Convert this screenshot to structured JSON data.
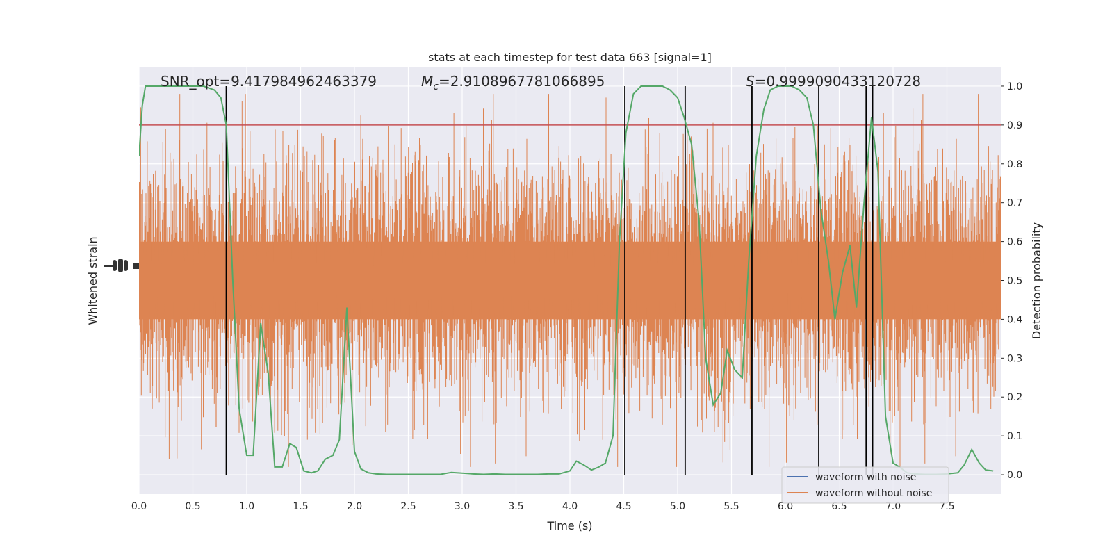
{
  "chart_data": {
    "type": "line",
    "title": "stats at each timestep for test data 663 [signal=1]",
    "xlabel": "Time (s)",
    "ylabel_left": "Whitened strain",
    "ylabel_right": "Detection probability",
    "xlim": [
      0.0,
      8.0
    ],
    "ylim_right": [
      -0.05,
      1.05
    ],
    "xticks": [
      "0.0",
      "0.5",
      "1.0",
      "1.5",
      "2.0",
      "2.5",
      "3.0",
      "3.5",
      "4.0",
      "4.5",
      "5.0",
      "5.5",
      "6.0",
      "6.5",
      "7.0",
      "7.5"
    ],
    "yticks_right": [
      "0.0",
      "0.1",
      "0.2",
      "0.3",
      "0.4",
      "0.5",
      "0.6",
      "0.7",
      "0.8",
      "0.9",
      "1.0"
    ],
    "annotations": {
      "snr": "SNR_opt=9.417984962463379",
      "mc_symbol": "M",
      "mc_sub": "c",
      "mc_value": "=2.9108967781066895",
      "s_symbol": "S",
      "s_value": "=0.9999090433120728"
    },
    "legend": {
      "placement": "lower-right",
      "entries": [
        "waveform with noise",
        "waveform without noise"
      ]
    },
    "threshold": 0.9,
    "vlines_x": [
      0.81,
      4.51,
      5.07,
      5.69,
      6.31,
      6.75,
      6.81
    ],
    "strain": {
      "center_prob": 0.5,
      "band_half_prob": 0.1
    },
    "series": [
      {
        "name": "waveform without noise",
        "color": "#dd8452",
        "style": "noise"
      },
      {
        "color": "#55a868",
        "x": [
          0.0,
          0.03,
          0.06,
          0.13,
          0.2,
          0.3,
          0.4,
          0.5,
          0.6,
          0.7,
          0.76,
          0.81,
          0.87,
          0.93,
          1.0,
          1.06,
          1.13,
          1.2,
          1.26,
          1.33,
          1.4,
          1.46,
          1.53,
          1.6,
          1.66,
          1.73,
          1.8,
          1.86,
          1.93,
          2.0,
          2.06,
          2.13,
          2.2,
          2.3,
          2.4,
          2.5,
          2.6,
          2.7,
          2.8,
          2.9,
          3.0,
          3.1,
          3.2,
          3.3,
          3.4,
          3.5,
          3.6,
          3.7,
          3.8,
          3.9,
          4.0,
          4.06,
          4.13,
          4.2,
          4.27,
          4.33,
          4.4,
          4.46,
          4.52,
          4.59,
          4.66,
          4.73,
          4.8,
          4.86,
          4.93,
          5.0,
          5.06,
          5.13,
          5.2,
          5.26,
          5.33,
          5.4,
          5.46,
          5.53,
          5.6,
          5.66,
          5.73,
          5.8,
          5.86,
          5.93,
          6.0,
          6.06,
          6.13,
          6.2,
          6.26,
          6.33,
          6.4,
          6.46,
          6.53,
          6.6,
          6.66,
          6.73,
          6.8,
          6.86,
          6.93,
          7.0,
          7.06,
          7.13,
          7.2,
          7.3,
          7.4,
          7.5,
          7.6,
          7.66,
          7.73,
          7.8,
          7.86,
          7.93
        ],
        "y": [
          0.82,
          0.95,
          1.0,
          1.0,
          1.0,
          1.0,
          1.0,
          1.0,
          1.0,
          0.99,
          0.97,
          0.9,
          0.5,
          0.17,
          0.05,
          0.05,
          0.39,
          0.26,
          0.02,
          0.02,
          0.08,
          0.07,
          0.01,
          0.005,
          0.01,
          0.04,
          0.05,
          0.09,
          0.43,
          0.06,
          0.015,
          0.005,
          0.002,
          0.001,
          0.001,
          0.001,
          0.001,
          0.001,
          0.001,
          0.006,
          0.004,
          0.002,
          0.001,
          0.002,
          0.001,
          0.001,
          0.001,
          0.001,
          0.002,
          0.002,
          0.01,
          0.035,
          0.025,
          0.012,
          0.02,
          0.03,
          0.1,
          0.6,
          0.88,
          0.98,
          1.0,
          1.0,
          1.0,
          1.0,
          0.99,
          0.97,
          0.92,
          0.85,
          0.65,
          0.3,
          0.18,
          0.21,
          0.32,
          0.27,
          0.25,
          0.55,
          0.82,
          0.94,
          0.99,
          1.0,
          1.0,
          1.0,
          0.99,
          0.97,
          0.9,
          0.68,
          0.55,
          0.4,
          0.52,
          0.59,
          0.43,
          0.7,
          0.92,
          0.78,
          0.15,
          0.03,
          0.02,
          0.005,
          0.002,
          0.001,
          0.001,
          0.002,
          0.005,
          0.025,
          0.065,
          0.03,
          0.012,
          0.01
        ]
      }
    ]
  }
}
